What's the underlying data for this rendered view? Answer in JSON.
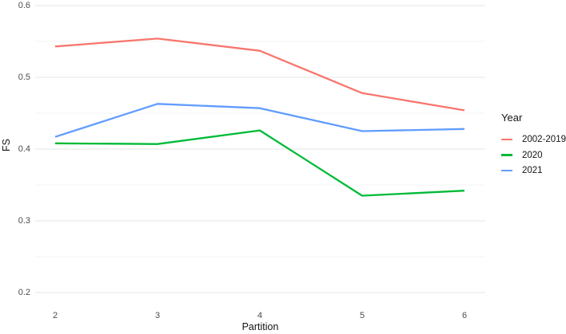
{
  "chart_data": {
    "type": "line",
    "title": "",
    "xlabel": "Partition",
    "ylabel": "FS",
    "legend_title": "Year",
    "legend_position": "right",
    "grid": "horizontal major and minor gridlines, no vertical gridlines, white background",
    "x": [
      2,
      3,
      4,
      5,
      6
    ],
    "x_tick_labels": [
      "2",
      "3",
      "4",
      "5",
      "6"
    ],
    "xlim": [
      2,
      6
    ],
    "y_ticks": [
      0.2,
      0.3,
      0.4,
      0.5,
      0.6
    ],
    "y_tick_labels": [
      "0.2",
      "0.3",
      "0.4",
      "0.5",
      "0.6"
    ],
    "ylim": [
      0.2,
      0.6
    ],
    "series": [
      {
        "name": "2002-2019",
        "color": "#F8766D",
        "values": [
          0.543,
          0.554,
          0.537,
          0.478,
          0.454
        ]
      },
      {
        "name": "2020",
        "color": "#00BA38",
        "values": [
          0.408,
          0.407,
          0.426,
          0.335,
          0.342
        ]
      },
      {
        "name": "2021",
        "color": "#619CFF",
        "values": [
          0.417,
          0.463,
          0.457,
          0.425,
          0.428
        ]
      }
    ],
    "colors": {
      "major_gridline": "#e4e4e4",
      "minor_gridline": "#f3f3f3",
      "tick_text": "#4d4d4d",
      "title_text": "#141414"
    }
  }
}
